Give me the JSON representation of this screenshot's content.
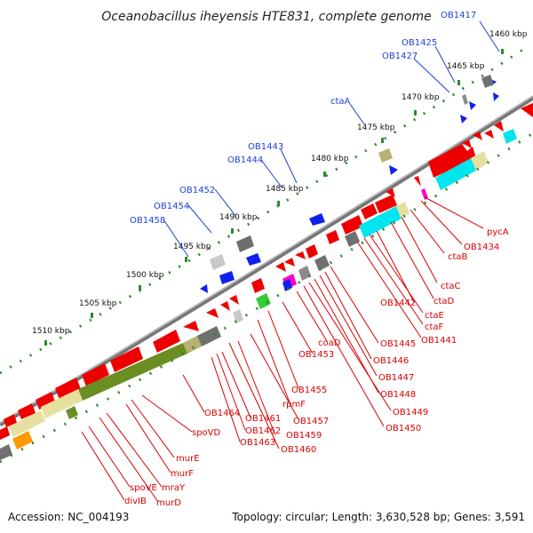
{
  "title": "Oceanobacillus iheyensis HTE831, complete genome",
  "footer": {
    "accession": "Accession: NC_004193",
    "summary": "Topology: circular; Length: 3,630,528 bp; Genes: 3,591"
  },
  "ruler_labels": [
    "1460 kbp",
    "1465 kbp",
    "1470 kbp",
    "1475 kbp",
    "1480 kbp",
    "1485 kbp",
    "1490 kbp",
    "1495 kbp",
    "1500 kbp",
    "1505 kbp",
    "1510 kbp"
  ],
  "upper_gene_labels": [
    "OB1417",
    "OB1425",
    "OB1427",
    "ctaA",
    "OB1443",
    "OB1444",
    "OB1452",
    "OB1454",
    "OB1458"
  ],
  "lower_gene_labels": [
    "pycA",
    "OB1434",
    "ctaB",
    "ctaC",
    "ctaD",
    "OB1442",
    "ctaE",
    "ctaF",
    "OB1441",
    "OB1445",
    "OB1446",
    "OB1447",
    "OB1448",
    "OB1449",
    "OB1450",
    "coaD",
    "OB1453",
    "OB1455",
    "rpmF",
    "OB1457",
    "OB1459",
    "OB1460",
    "OB1461",
    "OB1462",
    "OB1463",
    "OB1464",
    "spoVD",
    "murE",
    "murF",
    "mraY",
    "murD",
    "spoVE",
    "divIB"
  ],
  "colors": {
    "blue_label": "#1f3fd8",
    "red_label": "#d80000",
    "forward_gene": "#ee0000",
    "reverse_gene": "#1020ee",
    "backbone": "#888888",
    "tick_green": "#2d8a2d",
    "cog_cyan": "#00e5ee",
    "cog_olive": "#6b8e23",
    "cog_khaki": "#e6e0a0",
    "cog_gray": "#707070"
  }
}
